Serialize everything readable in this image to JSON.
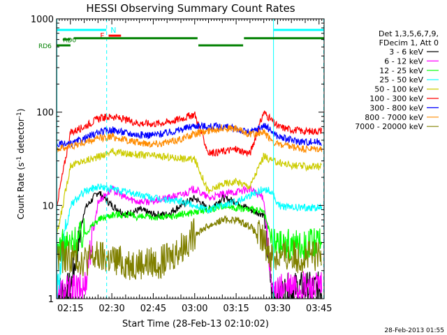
{
  "chart_data": {
    "type": "line",
    "title": "HESSI Observing Summary Count Rates",
    "xlabel": "Start Time (28-Feb-13 02:10:02)",
    "ylabel_main": "Count Rate (s",
    "ylabel_exp1": "-1",
    "ylabel_mid": " detector",
    "ylabel_exp2": "-1",
    "ylabel_end": ")",
    "yscale": "log",
    "ylim": [
      1,
      1000
    ],
    "xlim_minutes": [
      -0.03,
      96.8
    ],
    "x_tick_labels": [
      "02:15",
      "02:30",
      "02:45",
      "03:00",
      "03:15",
      "03:30",
      "03:45"
    ],
    "x_tick_minutes": [
      4.97,
      19.97,
      34.97,
      49.97,
      64.97,
      79.97,
      94.97
    ],
    "y_tick_labels": [
      "1",
      "10",
      "100",
      "1000"
    ],
    "y_tick_values": [
      1,
      10,
      100,
      1000
    ],
    "timestamp": "28-Feb-2013 01:55",
    "legend_header": [
      "Det 1,3,5,6,7,9,",
      "FDecim 1, Att 0"
    ],
    "series": [
      {
        "name": "3 - 6 keV",
        "color": "#000000",
        "x": [
          0,
          5,
          10,
          15,
          20,
          25,
          30,
          35,
          40,
          45,
          50,
          55,
          60,
          65,
          70,
          75,
          78,
          80,
          85,
          90,
          96
        ],
        "y": [
          1.2,
          1.3,
          9,
          14,
          10,
          8,
          9,
          8,
          8,
          10,
          12,
          9,
          12,
          11,
          9,
          8,
          1.1,
          1.1,
          1.3,
          1.3,
          1.3
        ]
      },
      {
        "name": "6 - 12 keV",
        "color": "#ff00ff",
        "x": [
          0,
          3,
          5,
          10,
          15,
          20,
          25,
          30,
          35,
          40,
          45,
          50,
          55,
          60,
          65,
          70,
          75,
          78,
          80,
          85,
          90,
          96
        ],
        "y": [
          1.2,
          1.2,
          1.2,
          1.3,
          11,
          15,
          12,
          11,
          11,
          12,
          13,
          15,
          12,
          13,
          14,
          15,
          12,
          1.1,
          1.2,
          1.3,
          1.3,
          1.3
        ]
      },
      {
        "name": "12 - 25 keV",
        "color": "#00ff00",
        "x": [
          0,
          5,
          10,
          15,
          20,
          25,
          30,
          35,
          40,
          45,
          50,
          55,
          60,
          65,
          70,
          75,
          78,
          80,
          85,
          90,
          96
        ],
        "y": [
          3.6,
          3.8,
          5,
          7,
          8,
          8,
          7.5,
          7.5,
          7.5,
          8,
          8.5,
          9,
          10,
          9.5,
          9,
          8.5,
          4,
          3.8,
          3.8,
          3.8,
          3.8
        ]
      },
      {
        "name": "25 - 50 keV",
        "color": "#00ffff",
        "x": [
          0,
          5,
          10,
          15,
          20,
          25,
          30,
          35,
          40,
          45,
          50,
          55,
          60,
          65,
          70,
          75,
          78,
          80,
          85,
          90,
          96
        ],
        "y": [
          1.2,
          10,
          14,
          16,
          15,
          14,
          13,
          12,
          11.5,
          11,
          10,
          9,
          10,
          11,
          13,
          15,
          14,
          10,
          9.5,
          9.5,
          9.5
        ]
      },
      {
        "name": "50 - 100 keV",
        "color": "#cccc00",
        "x": [
          0,
          5,
          10,
          15,
          20,
          25,
          30,
          35,
          40,
          45,
          50,
          55,
          60,
          65,
          70,
          75,
          78,
          80,
          85,
          90,
          96
        ],
        "y": [
          4.5,
          27,
          30,
          33,
          38,
          36,
          35,
          34,
          33,
          32,
          31,
          14,
          17,
          18,
          16,
          34,
          30,
          29,
          27,
          26,
          26
        ]
      },
      {
        "name": "100 - 300 keV",
        "color": "#ff0000",
        "x": [
          0,
          5,
          10,
          15,
          20,
          25,
          30,
          35,
          40,
          45,
          50,
          55,
          60,
          65,
          70,
          75,
          78,
          80,
          85,
          90,
          96
        ],
        "y": [
          10,
          60,
          70,
          85,
          90,
          82,
          76,
          75,
          78,
          85,
          95,
          36,
          38,
          40,
          36,
          100,
          80,
          70,
          65,
          62,
          63
        ]
      },
      {
        "name": "300 - 800 keV",
        "color": "#0000ff",
        "x": [
          0,
          5,
          10,
          15,
          20,
          25,
          30,
          35,
          40,
          45,
          50,
          55,
          60,
          65,
          70,
          75,
          78,
          80,
          85,
          90,
          96
        ],
        "y": [
          45,
          45,
          52,
          60,
          65,
          60,
          57,
          57,
          60,
          65,
          72,
          70,
          70,
          66,
          60,
          72,
          62,
          55,
          50,
          48,
          48
        ]
      },
      {
        "name": "800 - 7000 keV",
        "color": "#ff8c00",
        "x": [
          0,
          5,
          10,
          15,
          20,
          25,
          30,
          35,
          40,
          45,
          50,
          55,
          60,
          65,
          70,
          75,
          78,
          80,
          85,
          90,
          96
        ],
        "y": [
          40,
          43,
          47,
          52,
          55,
          50,
          47,
          46,
          47,
          52,
          58,
          63,
          68,
          66,
          58,
          60,
          50,
          45,
          42,
          40,
          40
        ]
      },
      {
        "name": "7000 - 20000 keV",
        "color": "#808000",
        "x": [
          0,
          5,
          10,
          15,
          20,
          25,
          30,
          35,
          40,
          45,
          50,
          55,
          60,
          65,
          70,
          75,
          78,
          80,
          85,
          90,
          96
        ],
        "y": [
          2.8,
          2.8,
          2.6,
          2.8,
          2.6,
          2.4,
          2.4,
          2.4,
          2.6,
          3.5,
          5,
          6,
          7,
          7,
          6,
          4,
          2.8,
          2.8,
          2.8,
          2.8,
          2.8
        ]
      }
    ],
    "flag_bars": [
      {
        "label": "N",
        "color": "#00ffff",
        "segments": [
          [
            0,
            18
          ],
          [
            78.5,
            96.8
          ]
        ],
        "y": 760,
        "label_x": 19.5
      },
      {
        "label": "F",
        "color": "#ff0000",
        "segments": [
          [
            18.8,
            23.3
          ]
        ],
        "y": 660,
        "label_x": 15.7
      },
      {
        "label": "RD6",
        "color": "#008000",
        "segments": [
          [
            0,
            5
          ],
          [
            6.2,
            51
          ],
          [
            51.3,
            67.5
          ],
          [
            67.8,
            96.8
          ]
        ],
        "segment_y": [
          520,
          620,
          520,
          620
        ],
        "label_x": -6.6
      },
      {
        "label": "RD0",
        "color": "#008000",
        "segments": [
          [
            2.2,
            5
          ]
        ],
        "y": 600,
        "label_x": 2.3
      }
    ],
    "vertical_markers": [
      {
        "x": 0.1,
        "color": "#00ffff",
        "style": "solid"
      },
      {
        "x": 18.1,
        "color": "#00ffff",
        "style": "dashed"
      },
      {
        "x": 78.5,
        "color": "#00ffff",
        "style": "solid"
      },
      {
        "x": 96.7,
        "color": "#00ffff",
        "style": "dashed"
      }
    ]
  }
}
